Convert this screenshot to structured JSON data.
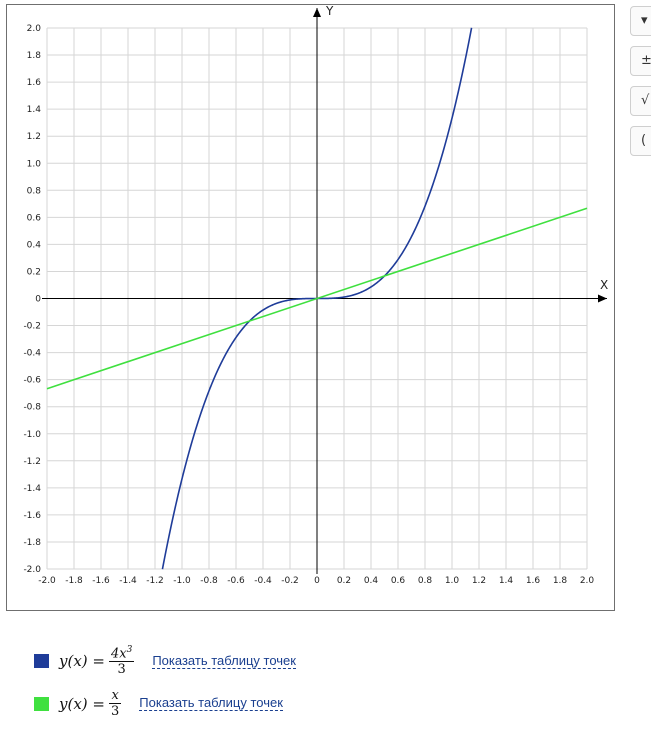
{
  "chart_data": {
    "type": "line",
    "xlabel": "X",
    "ylabel": "Y",
    "xlim": [
      -2.0,
      2.0
    ],
    "ylim": [
      -2.0,
      2.0
    ],
    "grid": true,
    "x_ticks": [
      "-2.0",
      "-1.8",
      "-1.6",
      "-1.4",
      "-1.2",
      "-1.0",
      "-0.8",
      "-0.6",
      "-0.4",
      "-0.2",
      "0",
      "0.2",
      "0.4",
      "0.6",
      "0.8",
      "1.0",
      "1.2",
      "1.4",
      "1.6",
      "1.8",
      "2.0"
    ],
    "y_ticks": [
      "2.0",
      "1.8",
      "1.6",
      "1.4",
      "1.2",
      "1.0",
      "0.8",
      "0.6",
      "0.4",
      "0.2",
      "0",
      "-0.2",
      "-0.4",
      "-0.6",
      "-0.8",
      "-1.0",
      "-1.2",
      "-1.4",
      "-1.6",
      "-1.8",
      "-2.0"
    ],
    "series": [
      {
        "formula": "y(x) = 4x^3/3",
        "color": "#1f3c99",
        "x": [
          -1.145,
          -1.1,
          -1.0,
          -0.9,
          -0.8,
          -0.7,
          -0.6,
          -0.5,
          -0.4,
          -0.3,
          -0.2,
          -0.1,
          0,
          0.1,
          0.2,
          0.3,
          0.4,
          0.5,
          0.6,
          0.7,
          0.8,
          0.9,
          1.0,
          1.1,
          1.145
        ],
        "y": [
          -2.0,
          -1.775,
          -1.333,
          -0.972,
          -0.683,
          -0.457,
          -0.288,
          -0.167,
          -0.085,
          -0.036,
          -0.011,
          -0.001,
          0,
          0.001,
          0.011,
          0.036,
          0.085,
          0.167,
          0.288,
          0.457,
          0.683,
          0.972,
          1.333,
          1.775,
          2.0
        ]
      },
      {
        "formula": "y(x) = x/3",
        "color": "#3fe03f",
        "x": [
          -2.0,
          2.0
        ],
        "y": [
          -0.667,
          0.667
        ]
      }
    ]
  },
  "legend": [
    {
      "lhs": "y(x) =",
      "num_base": "4x",
      "num_exp": "3",
      "den": "3",
      "link": "Показать таблицу точек",
      "color": "#1f3c99"
    },
    {
      "lhs": "y(x) =",
      "num_base": "x",
      "num_exp": "",
      "den": "3",
      "link": "Показать таблицу точек",
      "color": "#3fe03f"
    }
  ],
  "side_buttons": [
    "▾",
    "±",
    "√",
    "("
  ]
}
